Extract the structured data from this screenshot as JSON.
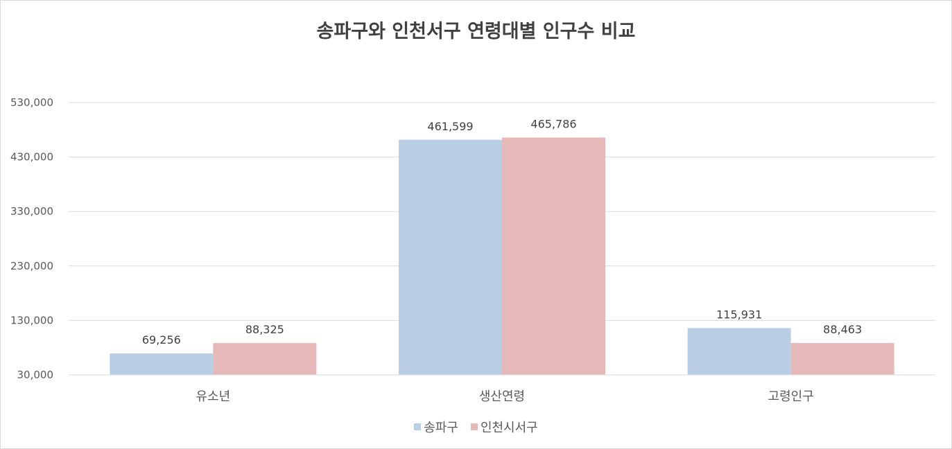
{
  "chart_data": {
    "type": "bar",
    "title": "송파구와 인천서구 연령대별 인구수 비교",
    "categories": [
      "유소년",
      "생산연령",
      "고령인구"
    ],
    "series": [
      {
        "name": "송파구",
        "color": "#b9cde5",
        "values": [
          69256,
          461599,
          115931
        ],
        "labels": [
          "69,256",
          "461,599",
          "115,931"
        ]
      },
      {
        "name": "인천시서구",
        "color": "#e6b9b8",
        "values": [
          88325,
          465786,
          88463
        ],
        "labels": [
          "88,325",
          "465,786",
          "88,463"
        ]
      }
    ],
    "ylim": [
      30000,
      530000
    ],
    "yticks": [
      30000,
      130000,
      230000,
      330000,
      430000,
      530000
    ],
    "ytick_labels": [
      "30,000",
      "130,000",
      "230,000",
      "330,000",
      "430,000",
      "530,000"
    ],
    "grid": true,
    "legend_position": "bottom"
  }
}
